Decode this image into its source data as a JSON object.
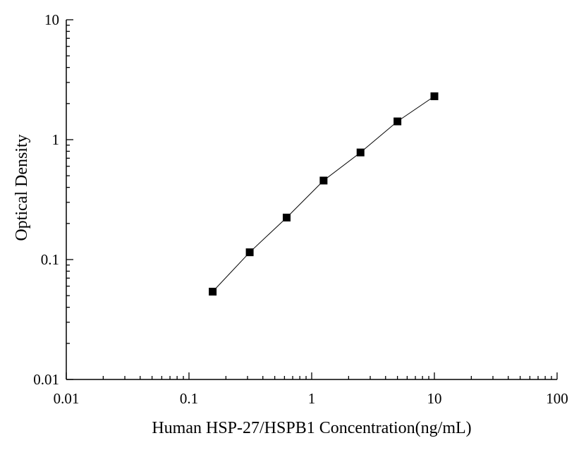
{
  "chart_data": {
    "type": "line",
    "xscale": "log",
    "yscale": "log",
    "xlim": [
      0.01,
      100
    ],
    "ylim": [
      0.01,
      10
    ],
    "xticks": [
      0.01,
      0.1,
      1,
      10,
      100
    ],
    "yticks": [
      0.01,
      0.1,
      1,
      10
    ],
    "xtick_labels": [
      "0.01",
      "0.1",
      "1",
      "10",
      "100"
    ],
    "ytick_labels": [
      "0.01",
      "0.1",
      "1",
      "10"
    ],
    "xlabel": "Human HSP-27/HSPB1 Concentration(ng/mL)",
    "ylabel": "Optical Density",
    "grid": false,
    "marker": "square",
    "series": [
      {
        "x": [
          0.156,
          0.3125,
          0.625,
          1.25,
          2.5,
          5,
          10
        ],
        "y": [
          0.054,
          0.115,
          0.224,
          0.456,
          0.782,
          1.42,
          2.3
        ]
      }
    ],
    "colors": {
      "axis": "#000000",
      "line": "#000000",
      "marker": "#000000"
    }
  }
}
